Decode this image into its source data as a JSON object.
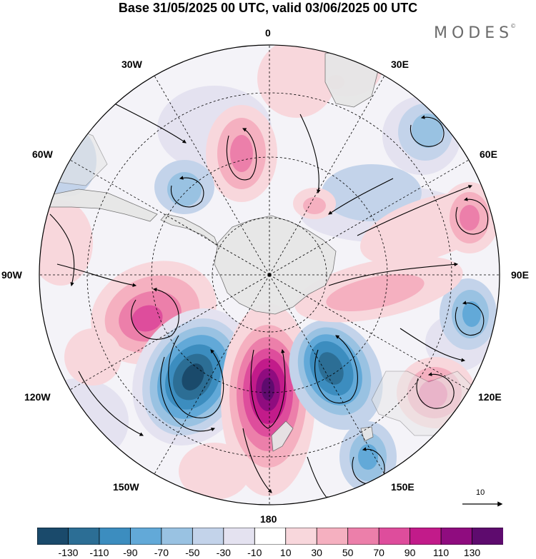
{
  "title": "Base 31/05/2025 00 UTC, valid 03/06/2025 00 UTC",
  "brand": {
    "name": "MODES",
    "mark": "©"
  },
  "projection": "south-polar-stereographic",
  "meridian_labels": {
    "n0": "0",
    "n30e": "30E",
    "n60e": "60E",
    "n90e": "90E",
    "n120e": "120E",
    "n150e": "150E",
    "n180": "180",
    "n150w": "150W",
    "n120w": "120W",
    "n90w": "90W",
    "n60w": "60W",
    "n30w": "30W"
  },
  "vector_reference": {
    "value": "10"
  },
  "colorbar": {
    "colors": [
      "#1a4a6b",
      "#2c6e95",
      "#3c8dbf",
      "#62a9d8",
      "#99c2e2",
      "#c3d3ea",
      "#e4e2f0",
      "#ffffff",
      "#f8d7dc",
      "#f5b0c0",
      "#ec7faa",
      "#de4d9c",
      "#c21b8a",
      "#8f0c7f",
      "#5e0b6e"
    ],
    "ticks": [
      "-130",
      "-110",
      "-90",
      "-70",
      "-50",
      "-30",
      "-10",
      "10",
      "30",
      "50",
      "70",
      "90",
      "110",
      "130"
    ]
  },
  "anomaly_centers": [
    {
      "name": "blue-120w-150w",
      "sign": "negative",
      "peak": -130
    },
    {
      "name": "magenta-180",
      "sign": "positive",
      "peak": 130
    },
    {
      "name": "blue-150e",
      "sign": "negative",
      "peak": -110
    },
    {
      "name": "pink-90w-120w",
      "sign": "positive",
      "peak": 90
    },
    {
      "name": "pink-120e",
      "sign": "positive",
      "peak": 70
    },
    {
      "name": "blue-90e",
      "sign": "negative",
      "peak": -70
    },
    {
      "name": "pink-60e",
      "sign": "positive",
      "peak": 70
    },
    {
      "name": "blue-30e",
      "sign": "negative",
      "peak": -50
    },
    {
      "name": "pink-30w",
      "sign": "positive",
      "peak": 50
    },
    {
      "name": "blue-60w",
      "sign": "negative",
      "peak": -50
    }
  ]
}
